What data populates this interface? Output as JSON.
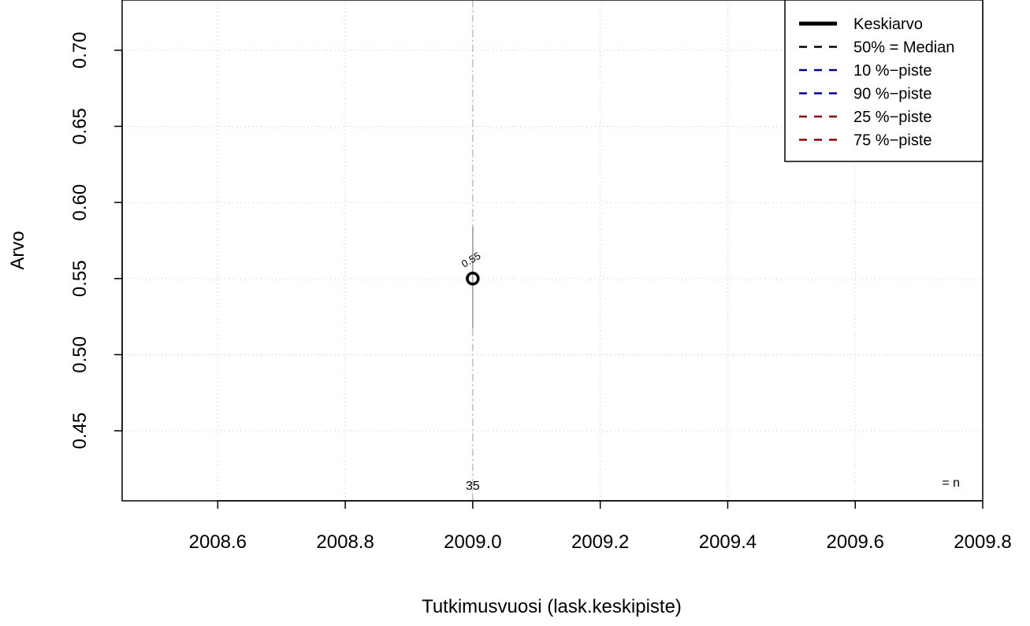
{
  "chart_data": {
    "type": "scatter",
    "xlabel": "Tutkimusvuosi (lask.keskipiste)",
    "ylabel": "Arvo",
    "xlim": [
      2008.45,
      2009.8
    ],
    "ylim": [
      0.404,
      0.733
    ],
    "x_ticks": [
      2008.6,
      2008.8,
      2009.0,
      2009.2,
      2009.4,
      2009.6,
      2009.8
    ],
    "x_tick_labels": [
      "2008.6",
      "2008.8",
      "2009.0",
      "2009.2",
      "2009.4",
      "2009.6",
      "2009.8"
    ],
    "y_ticks": [
      0.45,
      0.5,
      0.55,
      0.6,
      0.65,
      0.7
    ],
    "y_tick_labels": [
      "0.45",
      "0.50",
      "0.55",
      "0.60",
      "0.65",
      "0.70"
    ],
    "grid": true,
    "legend_position": "top-right",
    "legend": [
      {
        "label": "Keskiarvo",
        "color": "#000000",
        "style": "solid"
      },
      {
        "label": "50% = Median",
        "color": "#000000",
        "style": "dashed"
      },
      {
        "label": "10 %−piste",
        "color": "#00008B",
        "style": "dashed"
      },
      {
        "label": "90 %−piste",
        "color": "#00008B",
        "style": "dashed"
      },
      {
        "label": "25 %−piste",
        "color": "#8B0000",
        "style": "dashed"
      },
      {
        "label": "75 %−piste",
        "color": "#8B0000",
        "style": "dashed"
      }
    ],
    "series": [
      {
        "x": [
          2009.0
        ],
        "mean": [
          0.55
        ],
        "range_low": [
          0.517
        ],
        "range_high": [
          0.584
        ],
        "value_labels": [
          "0.55"
        ],
        "n_labels": [
          "35"
        ]
      }
    ],
    "n_legend_label": "= n"
  }
}
